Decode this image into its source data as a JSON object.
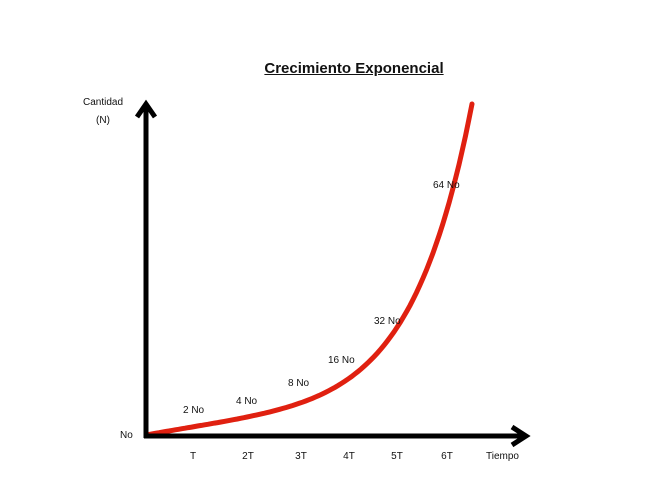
{
  "chart_data": {
    "type": "line",
    "title": "Crecimiento Exponencial",
    "ylabel_line1": "Cantidad",
    "ylabel_line2": "(N)",
    "xlabel": "Tiempo",
    "origin_label": "No",
    "x_ticks": [
      "T",
      "2T",
      "3T",
      "4T",
      "5T",
      "6T"
    ],
    "points": [
      {
        "x": 1,
        "label": "2 No"
      },
      {
        "x": 2,
        "label": "4 No"
      },
      {
        "x": 3,
        "label": "8 No"
      },
      {
        "x": 4,
        "label": "16 No"
      },
      {
        "x": 5,
        "label": "32 No"
      },
      {
        "x": 6,
        "label": "64 No"
      }
    ],
    "series_color": "#e02010",
    "axis_color": "#000000",
    "grid": false
  }
}
